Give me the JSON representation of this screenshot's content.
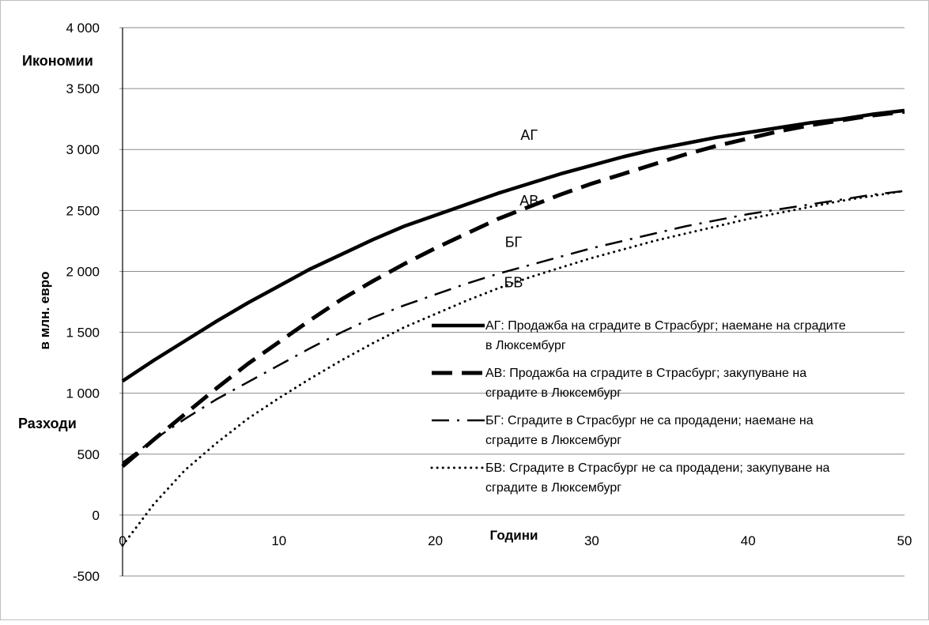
{
  "chart_data": {
    "type": "line",
    "xlabel": "Години",
    "ylabel": "в млн. евро",
    "ylim": [
      -500,
      4000
    ],
    "xlim": [
      0,
      50
    ],
    "yticks": [
      4000,
      3500,
      3000,
      2500,
      2000,
      1500,
      1000,
      500,
      0,
      -500
    ],
    "ytick_labels": [
      "4 000",
      "3 500",
      "3 000",
      "2 500",
      "2 000",
      "1 500",
      "1 000",
      "500",
      "0",
      "-500"
    ],
    "xticks": [
      0,
      10,
      20,
      30,
      40,
      50
    ],
    "xtick_labels": [
      "0",
      "10",
      "20",
      "30",
      "40",
      "50"
    ],
    "grid": "horizontal",
    "legend_position": "right",
    "annotations": {
      "top": "Икономии",
      "bottom": "Разходи"
    },
    "x": [
      0,
      2,
      4,
      6,
      8,
      10,
      12,
      14,
      16,
      18,
      20,
      22,
      24,
      26,
      28,
      30,
      32,
      34,
      36,
      38,
      40,
      42,
      44,
      46,
      48,
      50
    ],
    "series": [
      {
        "key": "AG",
        "label": "АГ",
        "name": "АГ: Продажба на сградите в Страсбург; наемане на сградите в Люксембург",
        "style": "solid",
        "values": [
          1100,
          1270,
          1430,
          1590,
          1740,
          1880,
          2020,
          2140,
          2260,
          2370,
          2460,
          2550,
          2640,
          2720,
          2800,
          2870,
          2940,
          3000,
          3050,
          3100,
          3140,
          3180,
          3220,
          3250,
          3290,
          3320
        ]
      },
      {
        "key": "AV",
        "label": "АВ",
        "name": "АВ: Продажба на сградите в Страсбург; закупуване на сградите в Люксембург",
        "style": "dash",
        "values": [
          400,
          620,
          830,
          1040,
          1240,
          1420,
          1600,
          1770,
          1920,
          2060,
          2190,
          2310,
          2430,
          2530,
          2630,
          2720,
          2800,
          2880,
          2960,
          3030,
          3090,
          3150,
          3200,
          3240,
          3280,
          3310
        ]
      },
      {
        "key": "BG",
        "label": "БГ",
        "name": "БГ: Сградите в Страсбург не са продадени; наемане на сградите в Люксембург",
        "style": "dashdot",
        "values": [
          430,
          620,
          790,
          950,
          1090,
          1230,
          1370,
          1500,
          1620,
          1720,
          1810,
          1900,
          1980,
          2050,
          2120,
          2190,
          2250,
          2310,
          2370,
          2420,
          2470,
          2510,
          2550,
          2590,
          2630,
          2660
        ]
      },
      {
        "key": "BV",
        "label": "БВ",
        "name": "БВ: Сградите в Страсбург не са продадени; закупуване на сградите в Люксембург",
        "style": "dot",
        "values": [
          -250,
          90,
          370,
          590,
          790,
          960,
          1120,
          1270,
          1410,
          1540,
          1650,
          1760,
          1860,
          1950,
          2030,
          2110,
          2180,
          2250,
          2310,
          2370,
          2430,
          2480,
          2530,
          2580,
          2620,
          2660
        ]
      }
    ],
    "series_labels_on_chart": [
      {
        "key": "AG",
        "text": "АГ",
        "x": 26,
        "y": 3080
      },
      {
        "key": "AV",
        "text": "АВ",
        "x": 26,
        "y": 2540
      },
      {
        "key": "BG",
        "text": "БГ",
        "x": 25,
        "y": 2200
      },
      {
        "key": "BV",
        "text": "БВ",
        "x": 25,
        "y": 1870
      }
    ]
  }
}
